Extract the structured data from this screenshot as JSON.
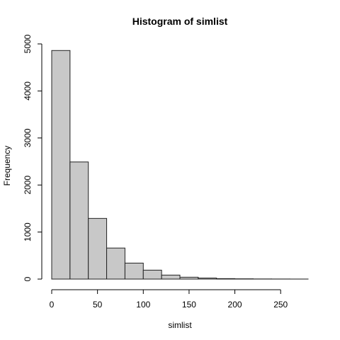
{
  "chart_data": {
    "type": "bar",
    "title": "Histogram of simlist",
    "xlabel": "simlist",
    "ylabel": "Frequency",
    "bin_edges": [
      0,
      20,
      40,
      60,
      80,
      100,
      120,
      140,
      160,
      180,
      200,
      220,
      240,
      260,
      280
    ],
    "values": [
      4860,
      2490,
      1290,
      660,
      340,
      190,
      85,
      40,
      22,
      10,
      6,
      3,
      2,
      1
    ],
    "xlim": [
      0,
      280
    ],
    "ylim": [
      0,
      5000
    ],
    "x_ticks": [
      0,
      50,
      100,
      150,
      200,
      250
    ],
    "y_ticks": [
      0,
      1000,
      2000,
      3000,
      4000,
      5000
    ],
    "bar_color": "#c8c8c8",
    "edge_color": "#222222",
    "grid": false,
    "legend": "none"
  }
}
